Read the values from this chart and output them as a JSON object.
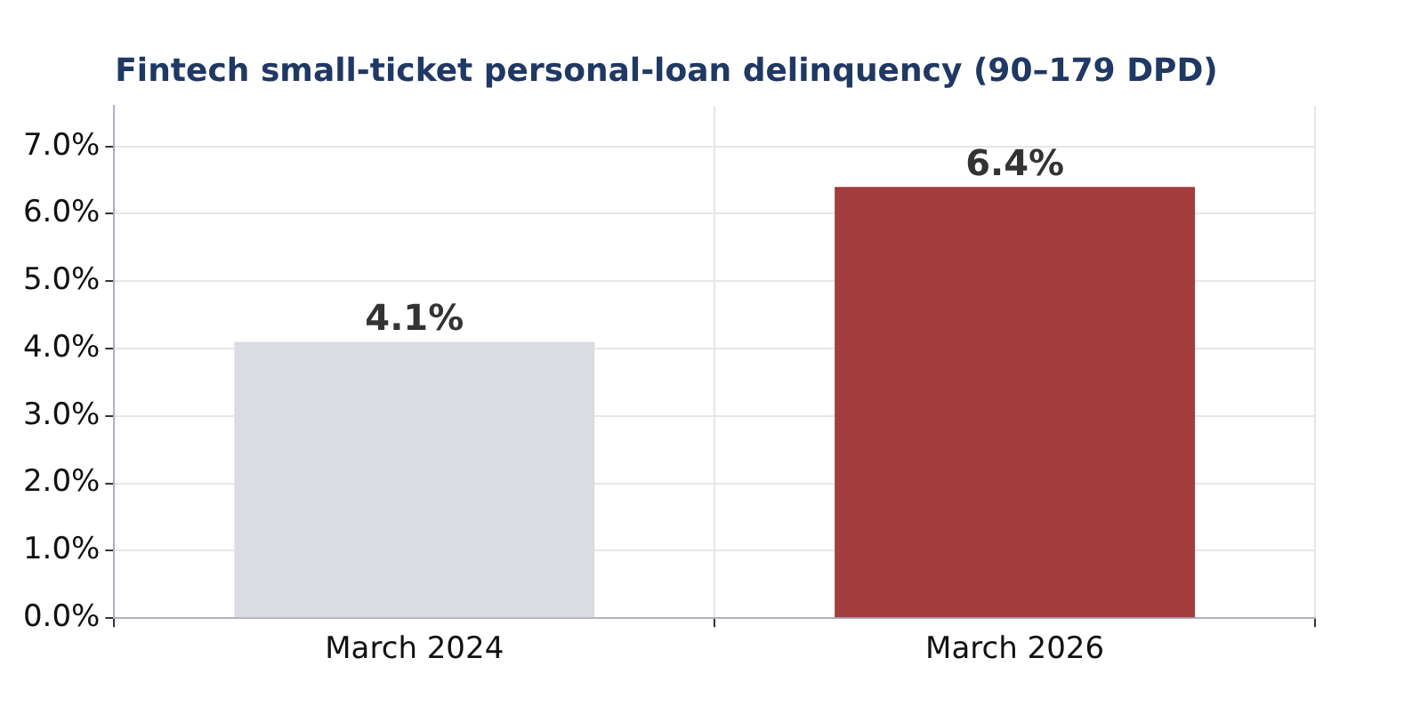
{
  "chart_data": {
    "type": "bar",
    "title": "Fintech small-ticket personal-loan delinquency (90–179 DPD)",
    "categories": [
      "March 2024",
      "March 2026"
    ],
    "values": [
      4.1,
      6.4
    ],
    "colors": [
      "#d9dce0",
      "#a33c3c"
    ],
    "value_labels": [
      "4.1%",
      "6.4%"
    ],
    "ylim": [
      0,
      7.6
    ],
    "yticks": [
      {
        "value": 0,
        "label": "0.0%"
      },
      {
        "value": 1,
        "label": "1.0%"
      },
      {
        "value": 2,
        "label": "2.0%"
      },
      {
        "value": 3,
        "label": "3.0%"
      },
      {
        "value": 4,
        "label": "4.0%"
      },
      {
        "value": 5,
        "label": "5.0%"
      },
      {
        "value": 6,
        "label": "6.0%"
      },
      {
        "value": 7,
        "label": "7.0%"
      }
    ],
    "grid": true,
    "legend": false
  }
}
